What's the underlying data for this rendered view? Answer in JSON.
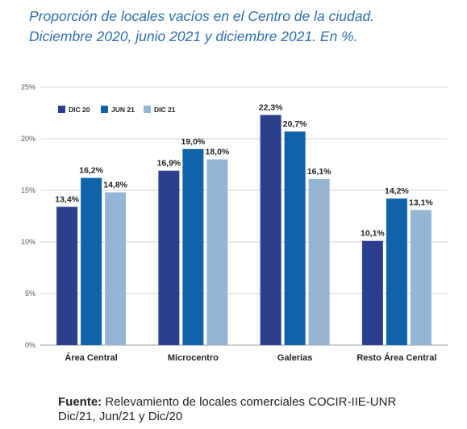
{
  "title_line1": "Proporción de locales vacíos en el Centro de la ciudad.",
  "title_line2": "Diciembre 2020, junio 2021 y diciembre 2021. En %.",
  "source_label": "Fuente:",
  "source_text": " Relevamiento de locales comerciales COCIR-IIE-UNR",
  "source_line2": "Dic/21, Jun/21 y Dic/20",
  "chart_data": {
    "type": "bar",
    "categories": [
      "Área Central",
      "Microcentro",
      "Galerías",
      "Resto Área Central"
    ],
    "series": [
      {
        "name": "DIC 20",
        "color": "#2b3f8e",
        "values": [
          13.4,
          16.9,
          22.3,
          10.1
        ],
        "labels": [
          "13,4%",
          "16,9%",
          "22,3%",
          "10,1%"
        ]
      },
      {
        "name": "JUN 21",
        "color": "#0f63a8",
        "values": [
          16.2,
          19.0,
          20.7,
          14.2
        ],
        "labels": [
          "16,2%",
          "19,0%",
          "20,7%",
          "14,2%"
        ]
      },
      {
        "name": "DIC 21",
        "color": "#95b5d6",
        "values": [
          14.8,
          18.0,
          16.1,
          13.1
        ],
        "labels": [
          "14,8%",
          "18,0%",
          "16,1%",
          "13,1%"
        ]
      }
    ],
    "ylim": [
      0,
      25
    ],
    "yticks": [
      0,
      5,
      10,
      15,
      20,
      25
    ],
    "ytick_labels": [
      "0%",
      "5%",
      "10%",
      "15%",
      "20%",
      "25%"
    ],
    "grid": true,
    "legend_position": "top-left"
  }
}
